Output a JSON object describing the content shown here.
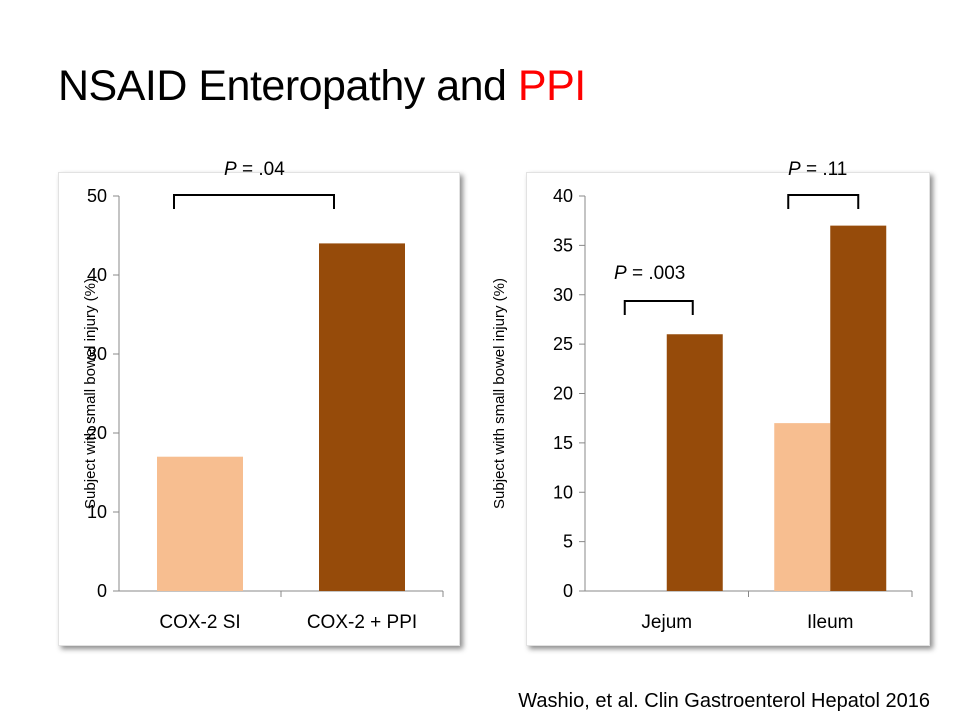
{
  "slide": {
    "title_main": "NSAID Enteropathy and ",
    "title_accent": "PPI",
    "accent_color": "#ff0000",
    "citation": "Washio, et al. Clin Gastroenterol Hepatol 2016"
  },
  "chart_data": [
    {
      "type": "bar",
      "categories": [
        "COX-2 SI",
        "COX-2 + PPI"
      ],
      "values": [
        17,
        44
      ],
      "colors": [
        "#f7be90",
        "#964b0a"
      ],
      "ylabel": "Subject with small bowel injury (%)",
      "ylim": [
        0,
        50
      ],
      "yticks": [
        0,
        10,
        20,
        30,
        40,
        50
      ],
      "grid": false,
      "annotations": [
        {
          "p_label": "P",
          "p_value": "= .04",
          "from_category": "COX-2 SI",
          "to_category": "COX-2 + PPI"
        }
      ]
    },
    {
      "type": "bar",
      "categories": [
        "Jejum",
        "Ileum"
      ],
      "series": [
        {
          "values": [
            0,
            17
          ],
          "color": "#f7be90"
        },
        {
          "values": [
            26,
            37
          ],
          "color": "#964b0a"
        }
      ],
      "ylabel": "Subject with small bowel injury (%)",
      "ylim": [
        0,
        40
      ],
      "yticks": [
        0,
        5,
        10,
        15,
        20,
        25,
        30,
        35,
        40
      ],
      "grid": false,
      "annotations": [
        {
          "p_label": "P",
          "p_value": "= .003",
          "category": "Jejum"
        },
        {
          "p_label": "P",
          "p_value": "= .11",
          "category": "Ileum"
        }
      ]
    }
  ]
}
